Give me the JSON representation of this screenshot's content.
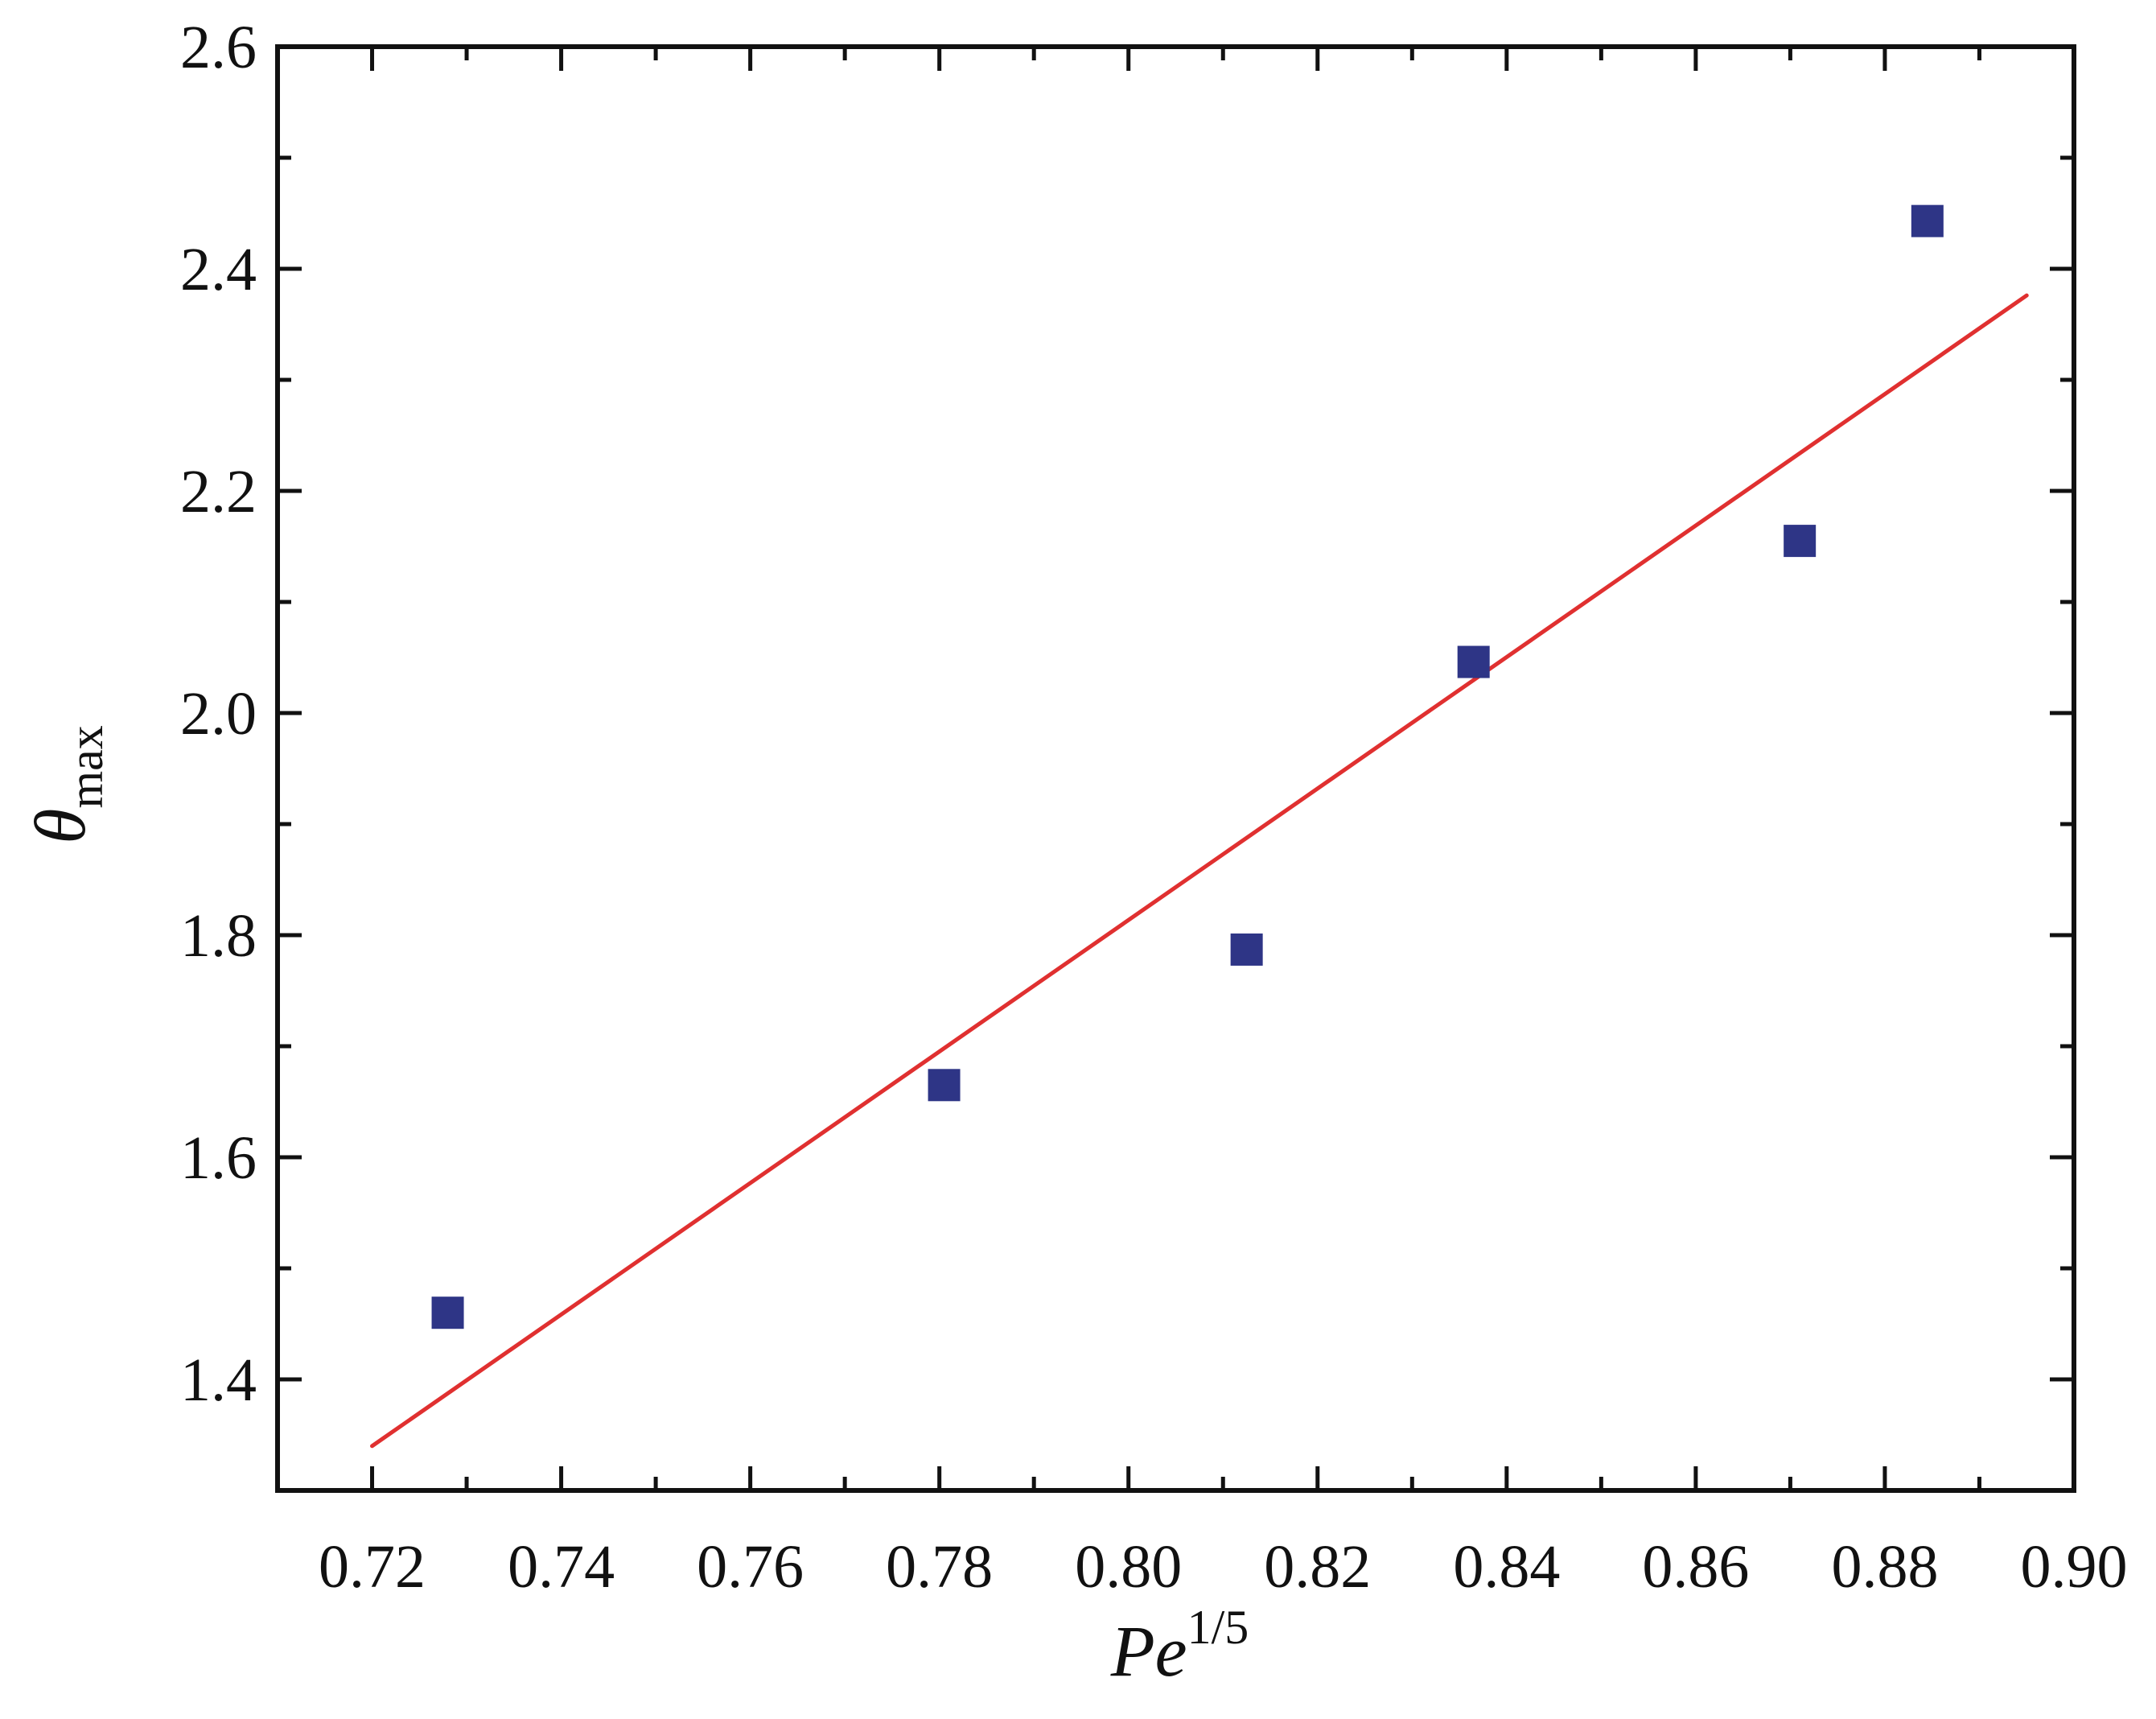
{
  "chart_data": {
    "type": "scatter",
    "title": "",
    "xlabel": {
      "base": "Pe",
      "sup": "1/5"
    },
    "ylabel": {
      "base": "θ",
      "sub": "max"
    },
    "xlim": [
      0.71,
      0.9
    ],
    "ylim": [
      1.3,
      2.6
    ],
    "x_ticks": [
      "0.72",
      "0.74",
      "0.76",
      "0.78",
      "0.80",
      "0.82",
      "0.84",
      "0.86",
      "0.88",
      "0.90"
    ],
    "y_ticks": [
      "1.4",
      "1.6",
      "1.8",
      "2.0",
      "2.2",
      "2.4",
      "2.6"
    ],
    "grid": false,
    "series": [
      {
        "kind": "markers",
        "marker": "square",
        "color": "#2e3586",
        "x": [
          0.728,
          0.7805,
          0.8125,
          0.8365,
          0.871,
          0.8845
        ],
        "y": [
          1.46,
          1.665,
          1.787,
          2.046,
          2.155,
          2.443
        ]
      },
      {
        "kind": "fit-line",
        "color": "#e03030",
        "x": [
          0.72,
          0.895
        ],
        "y": [
          1.34,
          2.376
        ]
      }
    ]
  }
}
